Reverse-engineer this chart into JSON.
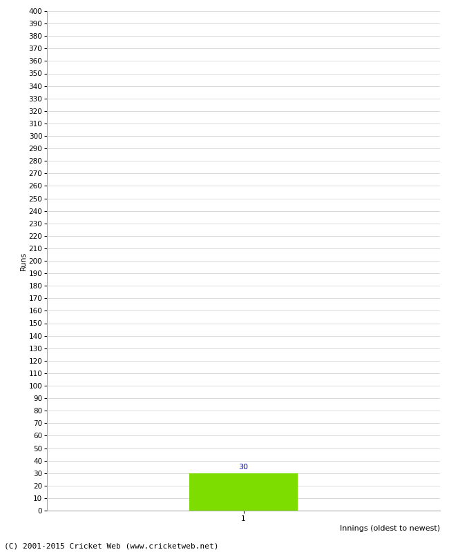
{
  "xlabel": "Innings (oldest to newest)",
  "ylabel": "Runs",
  "bar_values": [
    30
  ],
  "bar_positions": [
    1
  ],
  "bar_color": "#7ddd00",
  "bar_width": 0.55,
  "bar_label_color": "#0000cc",
  "x_tick_labels": [
    "1"
  ],
  "ylim": [
    0,
    400
  ],
  "xlim": [
    0,
    2
  ],
  "ytick_step": 10,
  "background_color": "#ffffff",
  "grid_color": "#cccccc",
  "xlabel_fontsize": 8,
  "ylabel_fontsize": 8,
  "tick_fontsize": 7.5,
  "annotation_fontsize": 8,
  "footer_text": "(C) 2001-2015 Cricket Web (www.cricketweb.net)",
  "footer_fontsize": 8
}
